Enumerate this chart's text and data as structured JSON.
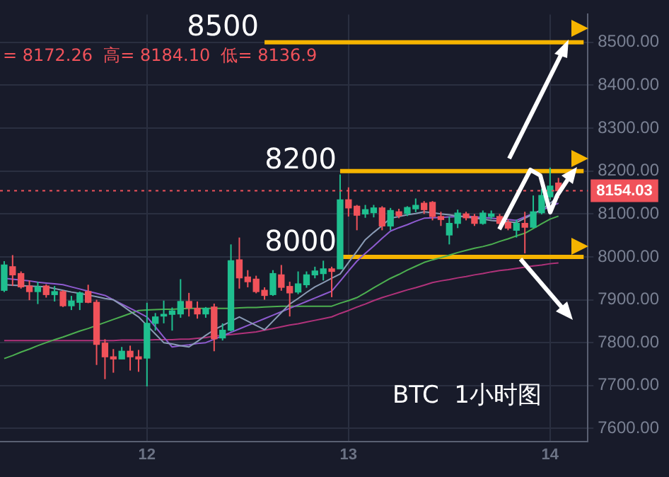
{
  "chart_data": {
    "type": "candlestick",
    "categories": [
      null,
      null,
      null,
      null,
      null,
      null,
      null,
      null,
      null,
      null,
      null,
      null,
      null,
      null,
      null,
      null,
      null,
      "12",
      null,
      null,
      null,
      null,
      null,
      null,
      null,
      null,
      null,
      null,
      null,
      null,
      null,
      null,
      null,
      null,
      null,
      null,
      null,
      null,
      null,
      null,
      null,
      "13",
      null,
      null,
      null,
      null,
      null,
      null,
      null,
      null,
      null,
      null,
      null,
      null,
      null,
      null,
      null,
      null,
      null,
      null,
      null,
      null,
      null,
      null,
      null,
      "14",
      null,
      null,
      null,
      null
    ],
    "ohlc": [
      [
        7922,
        7990,
        7918,
        7981
      ],
      [
        7977,
        8004,
        7932,
        7958
      ],
      [
        7961,
        7966,
        7926,
        7930
      ],
      [
        7932,
        7945,
        7899,
        7919
      ],
      [
        7919,
        7942,
        7890,
        7930
      ],
      [
        7932,
        7936,
        7905,
        7912
      ],
      [
        7912,
        7932,
        7896,
        7919
      ],
      [
        7919,
        7922,
        7883,
        7886
      ],
      [
        7886,
        7909,
        7876,
        7897
      ],
      [
        7894,
        7919,
        7876,
        7916
      ],
      [
        7919,
        7935,
        7892,
        7894
      ],
      [
        7894,
        7900,
        7748,
        7796
      ],
      [
        7799,
        7808,
        7715,
        7767
      ],
      [
        7767,
        7785,
        7730,
        7762
      ],
      [
        7762,
        7790,
        7762,
        7780
      ],
      [
        7780,
        7793,
        7735,
        7767
      ],
      [
        7767,
        7783,
        7732,
        7762
      ],
      [
        7764,
        7893,
        7698,
        7845
      ],
      [
        7845,
        7869,
        7828,
        7860
      ],
      [
        7862,
        7898,
        7845,
        7866
      ],
      [
        7866,
        7882,
        7828,
        7874
      ],
      [
        7867,
        7948,
        7858,
        7896
      ],
      [
        7896,
        7916,
        7861,
        7881
      ],
      [
        7880,
        7896,
        7856,
        7867
      ],
      [
        7867,
        7883,
        7858,
        7880
      ],
      [
        7883,
        7891,
        7780,
        7809
      ],
      [
        7811,
        7845,
        7805,
        7829
      ],
      [
        7829,
        8029,
        7826,
        7991
      ],
      [
        7993,
        8045,
        7926,
        7951
      ],
      [
        7953,
        7969,
        7929,
        7942
      ],
      [
        7948,
        7956,
        7915,
        7919
      ],
      [
        7922,
        7929,
        7900,
        7910
      ],
      [
        7912,
        7969,
        7909,
        7961
      ],
      [
        7958,
        7981,
        7921,
        7929
      ],
      [
        7931,
        7942,
        7861,
        7916
      ],
      [
        7918,
        7966,
        7913,
        7937
      ],
      [
        7935,
        7966,
        7928,
        7958
      ],
      [
        7958,
        7977,
        7950,
        7967
      ],
      [
        7961,
        7991,
        7945,
        7972
      ],
      [
        7972,
        7977,
        7906,
        7966
      ],
      [
        7972,
        8192,
        7972,
        8133
      ],
      [
        8133,
        8162,
        8094,
        8114
      ],
      [
        8118,
        8121,
        8062,
        8097
      ],
      [
        8100,
        8121,
        8091,
        8110
      ],
      [
        8103,
        8121,
        8092,
        8114
      ],
      [
        8114,
        8118,
        8062,
        8072
      ],
      [
        8072,
        8114,
        8062,
        8108
      ],
      [
        8105,
        8112,
        8090,
        8096
      ],
      [
        8101,
        8118,
        8095,
        8115
      ],
      [
        8112,
        8136,
        8104,
        8120
      ],
      [
        8125,
        8130,
        8100,
        8110
      ],
      [
        8127,
        8130,
        8085,
        8094
      ],
      [
        8094,
        8105,
        8072,
        8087
      ],
      [
        8051,
        8094,
        8029,
        8078
      ],
      [
        8078,
        8110,
        8067,
        8102
      ],
      [
        8100,
        8105,
        8085,
        8091
      ],
      [
        8094,
        8100,
        8072,
        8078
      ],
      [
        8078,
        8108,
        8075,
        8102
      ],
      [
        8094,
        8108,
        8088,
        8100
      ],
      [
        8094,
        8100,
        8075,
        8078
      ],
      [
        8080,
        8087,
        8062,
        8067
      ],
      [
        8062,
        8087,
        8045,
        8078
      ],
      [
        8078,
        8105,
        8008,
        8069
      ],
      [
        8069,
        8143,
        8067,
        8105
      ],
      [
        8103,
        8159,
        8099,
        8143
      ],
      [
        8140,
        8208,
        8132,
        8165
      ],
      [
        8172,
        8184,
        8137,
        8154
      ],
      null,
      null,
      null
    ],
    "series": [
      {
        "type": "line",
        "color": "#8a9bb5",
        "values": [
          7935,
          7934,
          7933,
          7932,
          7931,
          7930,
          7926,
          7922,
          7918,
          7915,
          7911,
          7907,
          7903,
          7900,
          7887,
          7873,
          7860,
          7840,
          7820,
          7800,
          7797,
          7793,
          7790,
          7803,
          7817,
          7830,
          7840,
          7850,
          7860,
          7850,
          7840,
          7830,
          7850,
          7870,
          7890,
          7903,
          7917,
          7930,
          7940,
          7950,
          7960,
          7987,
          8013,
          8040,
          8057,
          8073,
          8090,
          8094,
          8098,
          8101,
          8105,
          8103,
          8100,
          8098,
          8095,
          8093,
          8090,
          8088,
          8085,
          8083,
          8082,
          8080,
          8090,
          8100,
          8110,
          8125,
          8140,
          null,
          null,
          null
        ]
      },
      {
        "type": "line",
        "color": "#8e5bd0",
        "values": [
          7950,
          7948,
          7946,
          7944,
          7941,
          7939,
          7937,
          7935,
          7930,
          7925,
          7920,
          7915,
          7910,
          7900,
          7890,
          7880,
          7870,
          7860,
          7837,
          7813,
          7790,
          7793,
          7795,
          7798,
          7800,
          7808,
          7816,
          7824,
          7832,
          7840,
          7848,
          7856,
          7864,
          7872,
          7880,
          7888,
          7896,
          7904,
          7912,
          7920,
          7943,
          7967,
          7990,
          8008,
          8025,
          8043,
          8060,
          8068,
          8075,
          8083,
          8090,
          8091,
          8092,
          8093,
          8094,
          8095,
          8093,
          8092,
          8090,
          8088,
          8087,
          8085,
          8093,
          8101,
          8109,
          8117,
          8125,
          null,
          null,
          null
        ]
      },
      {
        "type": "line",
        "color": "#4caf50",
        "values": [
          7763,
          7770,
          7778,
          7785,
          7793,
          7800,
          7807,
          7813,
          7820,
          7827,
          7833,
          7840,
          7847,
          7854,
          7861,
          7868,
          7875,
          7876,
          7877,
          7878,
          7878,
          7879,
          7880,
          7880,
          7880,
          7880,
          7880,
          7880,
          7881,
          7882,
          7882,
          7883,
          7884,
          7885,
          7885,
          7885,
          7885,
          7885,
          7885,
          7885,
          7892,
          7898,
          7905,
          7916,
          7928,
          7939,
          7950,
          7959,
          7969,
          7978,
          7987,
          7993,
          7998,
          8004,
          8010,
          8015,
          8020,
          8024,
          8029,
          8036,
          8042,
          8049,
          8055,
          8066,
          8077,
          8088,
          8095,
          null,
          null,
          null
        ]
      },
      {
        "type": "line",
        "color": "#b0327a",
        "values": [
          7805,
          7805,
          7805,
          7805,
          7805,
          7805,
          7805,
          7805,
          7805,
          7805,
          7805,
          7805,
          7805,
          7805,
          7806,
          7806,
          7806,
          7806,
          7807,
          7807,
          7807,
          7808,
          7808,
          7810,
          7812,
          7815,
          7817,
          7819,
          7821,
          7823,
          7825,
          7829,
          7833,
          7837,
          7841,
          7844,
          7848,
          7852,
          7856,
          7860,
          7868,
          7875,
          7883,
          7890,
          7898,
          7905,
          7911,
          7917,
          7923,
          7928,
          7934,
          7940,
          7944,
          7947,
          7951,
          7954,
          7958,
          7961,
          7965,
          7968,
          7970,
          7973,
          7976,
          7979,
          7981,
          7984,
          7986,
          null,
          null,
          null
        ]
      },
      {
        "type": "line",
        "color": "#f5b400",
        "values": [
          null,
          null,
          null,
          null,
          null,
          null,
          null,
          null,
          null,
          null,
          null,
          null,
          null,
          null,
          null,
          null,
          null,
          null,
          null,
          null,
          null,
          null,
          null,
          null,
          null,
          null,
          null,
          null,
          null,
          null,
          null,
          8500,
          8500,
          8500,
          8500,
          8500,
          8500,
          8500,
          8500,
          8500,
          8500,
          8500,
          8500,
          8500,
          8500,
          8500,
          8500,
          8500,
          8500,
          8500,
          8500,
          8500,
          8500,
          8500,
          8500,
          8500,
          8500,
          8500,
          8500,
          8500,
          8500,
          8500,
          8500,
          8500,
          8500,
          8500,
          8500,
          8500,
          8500,
          8500
        ]
      },
      {
        "type": "line",
        "color": "#f5b400",
        "values": [
          null,
          null,
          null,
          null,
          null,
          null,
          null,
          null,
          null,
          null,
          null,
          null,
          null,
          null,
          null,
          null,
          null,
          null,
          null,
          null,
          null,
          null,
          null,
          null,
          null,
          null,
          null,
          null,
          null,
          null,
          null,
          null,
          null,
          null,
          null,
          null,
          null,
          null,
          null,
          null,
          8200,
          8200,
          8200,
          8200,
          8200,
          8200,
          8200,
          8200,
          8200,
          8200,
          8200,
          8200,
          8200,
          8200,
          8200,
          8200,
          8200,
          8200,
          8200,
          8200,
          8200,
          8200,
          8200,
          8200,
          8200,
          8200,
          8200,
          8200,
          8200,
          8200
        ]
      },
      {
        "type": "line",
        "color": "#f5b400",
        "values": [
          null,
          null,
          null,
          null,
          null,
          null,
          null,
          null,
          null,
          null,
          null,
          null,
          null,
          null,
          null,
          null,
          null,
          null,
          null,
          null,
          null,
          null,
          null,
          null,
          null,
          null,
          null,
          null,
          null,
          null,
          null,
          null,
          null,
          null,
          null,
          null,
          null,
          null,
          null,
          null,
          8000,
          8000,
          8000,
          8000,
          8000,
          8000,
          8000,
          8000,
          8000,
          8000,
          8000,
          8000,
          8000,
          8000,
          8000,
          8000,
          8000,
          8000,
          8000,
          8000,
          8000,
          8000,
          8000,
          8000,
          8000,
          8000,
          8000,
          8000,
          8000,
          8000
        ]
      }
    ],
    "ylim": [
      7570,
      8565
    ],
    "yticks": [
      {
        "value": 7600,
        "label": "7600.00"
      },
      {
        "value": 7700,
        "label": "7700.00"
      },
      {
        "value": 7800,
        "label": "7800.00"
      },
      {
        "value": 7900,
        "label": "7900.00"
      },
      {
        "value": 8000,
        "label": "8000.00"
      },
      {
        "value": 8100,
        "label": "8100.00"
      },
      {
        "value": 8200,
        "label": "8200.00"
      },
      {
        "value": 8300,
        "label": "8300.00"
      },
      {
        "value": 8400,
        "label": "8400.00"
      },
      {
        "value": 8500,
        "label": "8500.00"
      }
    ],
    "ref_lines": [
      {
        "axis": "y",
        "value": 8154.03,
        "label": "8154.03",
        "color": "#f0525a",
        "line_style": "dotted"
      }
    ],
    "annotations": [
      "8500",
      "8200",
      "8000",
      "BTC  1小时图",
      "= 8172.26  高= 8184.10  低= 8136.9"
    ],
    "grid": true,
    "legend": false,
    "marker": "none",
    "line_style": "solid"
  }
}
